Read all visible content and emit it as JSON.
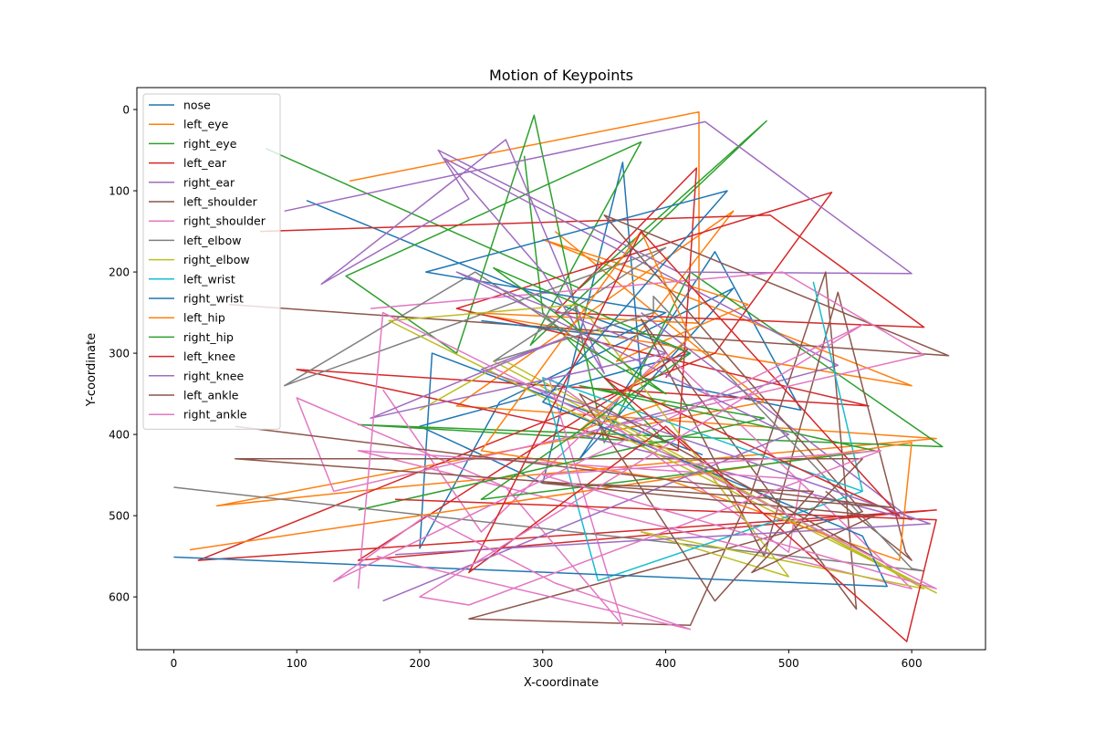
{
  "chart_data": {
    "type": "line",
    "title": "Motion of Keypoints",
    "xlabel": "X-coordinate",
    "ylabel": "Y-coordinate",
    "xlim": [
      -30,
      660
    ],
    "ylim": [
      665,
      -27
    ],
    "y_inverted": true,
    "x_ticks": [
      0,
      100,
      200,
      300,
      400,
      500,
      600
    ],
    "y_ticks": [
      0,
      100,
      200,
      300,
      400,
      500,
      600
    ],
    "grid": false,
    "legend_position": "top-left",
    "series": [
      {
        "name": "nose",
        "color": "#1f77b4",
        "x": [
          108,
          330,
          420,
          200,
          300,
          365,
          380,
          510,
          440,
          330,
          455,
          265,
          200,
          210,
          430
        ],
        "y": [
          112,
          250,
          300,
          390,
          460,
          65,
          330,
          370,
          175,
          430,
          220,
          360,
          540,
          300,
          425
        ]
      },
      {
        "name": "left_eye",
        "color": "#ff7f0e",
        "x": [
          143,
          427,
          427,
          240,
          600,
          300,
          467,
          360,
          455,
          230,
          620,
          180,
          35,
          480,
          310
        ],
        "y": [
          88,
          3,
          263,
          250,
          340,
          160,
          240,
          310,
          125,
          365,
          405,
          465,
          488,
          360,
          150
        ]
      },
      {
        "name": "right_eye",
        "color": "#2ca02c",
        "x": [
          75,
          330,
          482,
          290,
          380,
          140,
          230,
          293,
          350,
          420,
          625,
          150,
          400,
          300,
          285
        ],
        "y": [
          48,
          220,
          14,
          290,
          40,
          205,
          300,
          7,
          410,
          200,
          415,
          388,
          410,
          250,
          57
        ]
      },
      {
        "name": "left_ear",
        "color": "#d62728",
        "x": [
          70,
          485,
          610,
          310,
          425,
          410,
          100,
          565,
          230,
          535,
          440,
          20,
          620,
          150,
          418,
          400
        ],
        "y": [
          150,
          130,
          268,
          250,
          72,
          420,
          320,
          365,
          245,
          102,
          300,
          555,
          493,
          555,
          295,
          330
        ]
      },
      {
        "name": "right_ear",
        "color": "#9f6cc0",
        "x": [
          90,
          432,
          600,
          410,
          215,
          240,
          120,
          270,
          350,
          300,
          220,
          540,
          330,
          600,
          380
        ],
        "y": [
          125,
          15,
          202,
          200,
          50,
          110,
          215,
          37,
          325,
          200,
          60,
          315,
          400,
          505,
          250
        ]
      },
      {
        "name": "left_shoulder",
        "color": "#8c564b",
        "x": [
          45,
          630,
          350,
          560,
          240,
          420,
          470,
          530,
          555,
          380,
          480,
          540,
          595,
          600,
          530
        ],
        "y": [
          240,
          303,
          130,
          495,
          627,
          635,
          470,
          200,
          615,
          258,
          550,
          225,
          545,
          555,
          470
        ]
      },
      {
        "name": "right_shoulder",
        "color": "#e377c2",
        "x": [
          160,
          495,
          610,
          130,
          100,
          270,
          365,
          305,
          500,
          510,
          150,
          600,
          400,
          250,
          170
        ],
        "y": [
          245,
          200,
          302,
          470,
          355,
          465,
          635,
          330,
          545,
          455,
          420,
          590,
          300,
          520,
          345
        ]
      },
      {
        "name": "left_elbow",
        "color": "#7f7f7f",
        "x": [
          0,
          610,
          600,
          390,
          390,
          260,
          400,
          90,
          245,
          345
        ],
        "y": [
          465,
          568,
          565,
          230,
          250,
          310,
          170,
          340,
          200,
          300
        ]
      },
      {
        "name": "right_elbow",
        "color": "#bcbd22",
        "x": [
          200,
          270,
          610,
          380,
          500,
          330,
          175,
          620,
          260
        ],
        "y": [
          370,
          310,
          590,
          520,
          575,
          240,
          260,
          595,
          310
        ]
      },
      {
        "name": "left_wrist",
        "color": "#17becf",
        "x": [
          520,
          560,
          300,
          345,
          560
        ],
        "y": [
          212,
          470,
          330,
          580,
          470
        ]
      },
      {
        "name": "right_wrist",
        "color": "#1f77b4",
        "x": [
          0,
          580,
          560,
          300,
          450,
          205,
          400,
          360,
          250
        ],
        "y": [
          551,
          587,
          525,
          360,
          100,
          200,
          250,
          280,
          260
        ]
      },
      {
        "name": "left_hip",
        "color": "#ff7f0e",
        "x": [
          13,
          600,
          590,
          400,
          250,
          380,
          420,
          330,
          400
        ],
        "y": [
          542,
          410,
          555,
          455,
          420,
          150,
          280,
          395,
          360
        ]
      },
      {
        "name": "right_hip",
        "color": "#2ca02c",
        "x": [
          150,
          480,
          330,
          570,
          250,
          420,
          260,
          400,
          320
        ],
        "y": [
          493,
          380,
          340,
          420,
          480,
          300,
          195,
          350,
          280
        ]
      },
      {
        "name": "left_knee",
        "color": "#d62728",
        "x": [
          180,
          620,
          596,
          400,
          240,
          380,
          590,
          350,
          420
        ],
        "y": [
          480,
          505,
          655,
          390,
          570,
          150,
          500,
          330,
          420
        ]
      },
      {
        "name": "right_knee",
        "color": "#9f6cc0",
        "x": [
          180,
          615,
          250,
          320,
          160,
          400,
          230,
          500,
          170
        ],
        "y": [
          548,
          510,
          320,
          280,
          380,
          300,
          200,
          400,
          605
        ]
      },
      {
        "name": "left_ankle",
        "color": "#8c564b",
        "x": [
          50,
          585,
          50,
          560,
          470,
          570,
          300,
          520,
          440,
          330,
          580
        ],
        "y": [
          390,
          490,
          430,
          430,
          570,
          500,
          460,
          470,
          605,
          350,
          560
        ]
      },
      {
        "name": "right_ankle",
        "color": "#e377c2",
        "x": [
          165,
          420,
          310,
          205,
          130,
          560,
          200,
          240,
          575,
          300,
          620,
          170,
          150
        ],
        "y": [
          550,
          640,
          583,
          500,
          581,
          265,
          600,
          610,
          420,
          450,
          590,
          250,
          590
        ]
      }
    ]
  }
}
